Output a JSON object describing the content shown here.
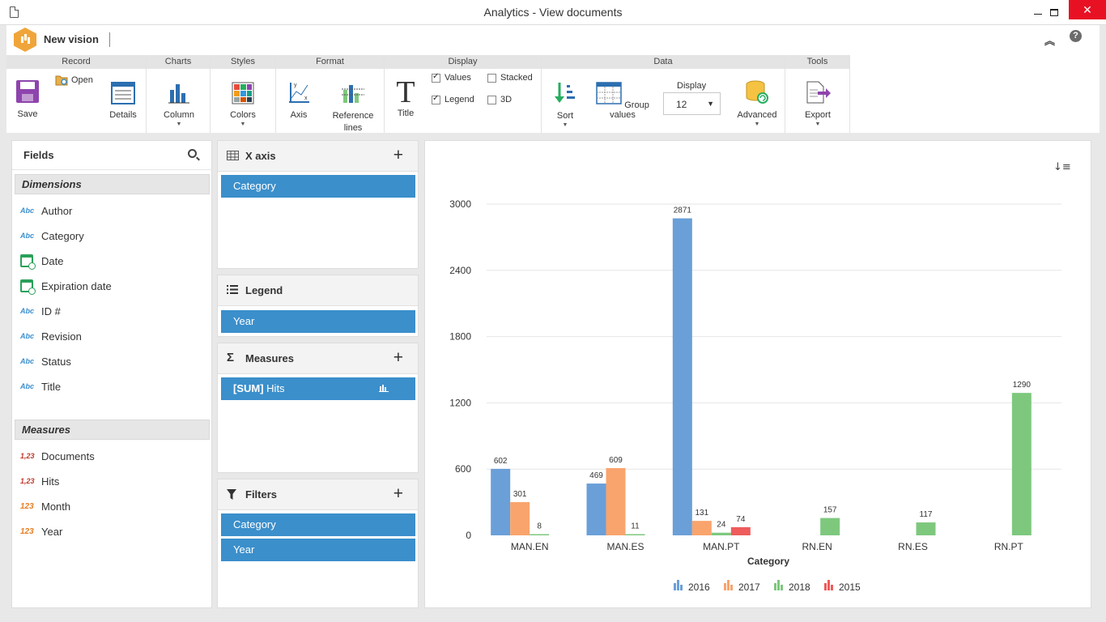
{
  "window": {
    "title": "Analytics - View documents"
  },
  "header": {
    "vision_name": "New vision",
    "help": "?"
  },
  "ribbon": {
    "groups": {
      "record": "Record",
      "charts": "Charts",
      "styles": "Styles",
      "format": "Format",
      "display": "Display",
      "data": "Data",
      "tools": "Tools"
    },
    "buttons": {
      "save": "Save",
      "open": "Open",
      "details": "Details",
      "column": "Column",
      "colors": "Colors",
      "axis": "Axis",
      "reference_lines": "Reference lines",
      "title": "Title",
      "sort": "Sort",
      "group_values": "Group values",
      "advanced": "Advanced",
      "export": "Export"
    },
    "checkboxes": {
      "values": "Values",
      "legend": "Legend",
      "stacked": "Stacked",
      "three_d": "3D"
    },
    "display_label": "Display",
    "display_value": "12"
  },
  "fields": {
    "title": "Fields",
    "dimensions_label": "Dimensions",
    "dimensions": [
      "Author",
      "Category",
      "Date",
      "Expiration date",
      "ID #",
      "Revision",
      "Status",
      "Title"
    ],
    "measures_label": "Measures",
    "measures": [
      "Documents",
      "Hits",
      "Month",
      "Year"
    ],
    "type_abc": "Abc",
    "type_num": "1,23",
    "type_int": "123"
  },
  "zones": {
    "x_axis": {
      "label": "X axis",
      "items": [
        "Category"
      ]
    },
    "legend": {
      "label": "Legend",
      "items": [
        "Year"
      ]
    },
    "measures": {
      "label": "Measures",
      "item_agg": "[SUM]",
      "item_name": "Hits"
    },
    "filters": {
      "label": "Filters",
      "items": [
        "Category",
        "Year"
      ]
    }
  },
  "chart_data": {
    "type": "bar",
    "categories": [
      "MAN.EN",
      "MAN.ES",
      "MAN.PT",
      "RN.EN",
      "RN.ES",
      "RN.PT"
    ],
    "series": [
      {
        "name": "2016",
        "color": "#6a9fd8",
        "values": [
          602,
          469,
          2871,
          null,
          null,
          null
        ]
      },
      {
        "name": "2017",
        "color": "#f9a46d",
        "values": [
          301,
          609,
          131,
          null,
          null,
          null
        ]
      },
      {
        "name": "2018",
        "color": "#7ec87e",
        "values": [
          8,
          11,
          24,
          157,
          117,
          1290
        ]
      },
      {
        "name": "2015",
        "color": "#ee5c5c",
        "values": [
          null,
          null,
          74,
          null,
          null,
          null
        ]
      }
    ],
    "xlabel": "Category",
    "ylabel": "",
    "ylim": [
      0,
      3000
    ],
    "yticks": [
      0,
      600,
      1200,
      1800,
      2400,
      3000
    ],
    "grid": true,
    "legend": "bottom"
  }
}
